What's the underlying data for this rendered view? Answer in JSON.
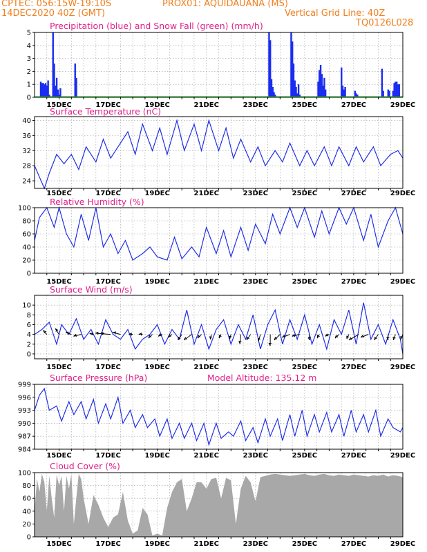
{
  "header": {
    "line1_left": "CPTEC:  056:15W-19:10S",
    "line1_right": "PROX01: AQUIDAUANA (MS)",
    "line2_left": "14DEC2020 40Z (GMT)",
    "line2_right": "Vertical Grid Line: 40Z",
    "line3_right": "TQ0126L028"
  },
  "x_axis_labels": [
    "15DEC",
    "17DEC",
    "19DEC",
    "21DEC",
    "23DEC",
    "25DEC",
    "27DEC",
    "29DEC"
  ],
  "colors": {
    "line": "#1f2ee6",
    "precip": "#1a2df0",
    "snow": "#18c218",
    "cloud": "#a8a8a8",
    "arrow": "#000000",
    "title": "#e0208a",
    "header": "#f08020"
  },
  "chart_data": [
    {
      "type": "bar",
      "title": "Precipitation (blue) and Snow Fall (green) (mm/h)",
      "ylim": [
        0,
        5
      ],
      "yticks": [
        0,
        1,
        2,
        3,
        4,
        5
      ],
      "xlim_days": [
        14,
        29
      ],
      "series": [
        {
          "name": "Precipitation",
          "x": [
            14.25,
            14.3,
            14.35,
            14.4,
            14.45,
            14.5,
            14.55,
            14.6,
            14.75,
            14.8,
            14.85,
            14.9,
            14.95,
            15.0,
            15.05,
            15.65,
            15.7,
            23.55,
            23.6,
            23.65,
            23.7,
            23.75,
            23.8,
            24.45,
            24.5,
            24.55,
            24.6,
            24.65,
            24.7,
            24.75,
            24.8,
            25.55,
            25.6,
            25.65,
            25.7,
            25.75,
            25.8,
            25.85,
            26.5,
            26.55,
            26.6,
            26.65,
            27.05,
            27.1,
            27.15,
            28.15,
            28.2,
            28.4,
            28.45,
            28.6,
            28.65,
            28.7,
            28.75,
            28.8,
            28.85
          ],
          "values": [
            1.2,
            1.1,
            1.1,
            1.0,
            1.1,
            0.9,
            1.3,
            0.2,
            5.0,
            2.6,
            0.9,
            1.5,
            0.6,
            0.2,
            0.7,
            2.6,
            1.5,
            5.0,
            4.4,
            1.4,
            0.8,
            0.4,
            0.2,
            5.0,
            4.3,
            2.6,
            1.3,
            0.8,
            0.3,
            1.0,
            0.2,
            1.2,
            2.1,
            2.5,
            1.8,
            0.9,
            1.5,
            0.6,
            2.3,
            0.9,
            0.6,
            0.8,
            0.5,
            0.3,
            0.2,
            2.2,
            0.5,
            0.6,
            0.5,
            0.5,
            1.1,
            1.2,
            1.2,
            1.0,
            1.0
          ]
        },
        {
          "name": "Snow Fall",
          "values": [
            0,
            0
          ]
        }
      ]
    },
    {
      "type": "line",
      "title": "Surface Temperature (nC)",
      "ylim": [
        22,
        41
      ],
      "yticks": [
        24,
        28,
        32,
        36,
        40
      ],
      "x": [
        14.0,
        14.2,
        14.4,
        14.6,
        14.9,
        15.2,
        15.5,
        15.8,
        16.1,
        16.5,
        16.8,
        17.1,
        17.4,
        17.8,
        18.1,
        18.4,
        18.8,
        19.1,
        19.4,
        19.8,
        20.1,
        20.5,
        20.8,
        21.1,
        21.5,
        21.8,
        22.1,
        22.4,
        22.8,
        23.1,
        23.4,
        23.8,
        24.1,
        24.4,
        24.8,
        25.1,
        25.4,
        25.8,
        26.1,
        26.4,
        26.8,
        27.1,
        27.4,
        27.8,
        28.1,
        28.5,
        28.8,
        29.0
      ],
      "values": [
        28,
        25,
        22,
        26,
        31,
        28.5,
        31,
        27,
        33,
        29,
        35,
        30,
        33,
        37,
        31,
        39,
        32,
        38,
        31,
        40,
        32,
        39,
        32,
        40,
        32,
        38,
        30,
        35,
        29,
        33,
        28,
        32,
        29,
        34,
        28,
        32,
        28,
        33,
        28,
        33,
        28,
        33,
        29,
        33,
        28,
        31,
        32,
        30
      ]
    },
    {
      "type": "line",
      "title": "Relative Humidity (%)",
      "ylim": [
        0,
        100
      ],
      "yticks": [
        0,
        20,
        40,
        60,
        80,
        100
      ],
      "x": [
        14.0,
        14.2,
        14.5,
        14.8,
        15.0,
        15.3,
        15.6,
        15.9,
        16.2,
        16.5,
        16.8,
        17.1,
        17.4,
        17.7,
        18.0,
        18.4,
        18.7,
        19.0,
        19.4,
        19.7,
        20.0,
        20.4,
        20.7,
        21.0,
        21.4,
        21.7,
        22.0,
        22.4,
        22.7,
        23.0,
        23.4,
        23.7,
        24.0,
        24.4,
        24.7,
        25.0,
        25.4,
        25.7,
        26.0,
        26.4,
        26.7,
        27.0,
        27.4,
        27.7,
        28.0,
        28.4,
        28.7,
        29.0
      ],
      "values": [
        50,
        85,
        100,
        70,
        100,
        60,
        40,
        90,
        50,
        100,
        40,
        60,
        30,
        50,
        20,
        30,
        40,
        25,
        20,
        55,
        22,
        40,
        25,
        70,
        30,
        65,
        25,
        70,
        35,
        75,
        45,
        90,
        60,
        100,
        70,
        100,
        55,
        95,
        60,
        100,
        75,
        100,
        50,
        90,
        40,
        80,
        100,
        60
      ]
    },
    {
      "type": "line",
      "title": "Surface Wind (m/s)",
      "ylim": [
        -1,
        12
      ],
      "yticks": [
        0,
        2,
        4,
        6,
        8,
        10
      ],
      "x": [
        14.0,
        14.3,
        14.6,
        14.9,
        15.1,
        15.4,
        15.7,
        16.0,
        16.3,
        16.6,
        16.9,
        17.2,
        17.5,
        17.8,
        18.1,
        18.4,
        18.7,
        19.0,
        19.3,
        19.6,
        19.9,
        20.2,
        20.5,
        20.8,
        21.1,
        21.4,
        21.7,
        22.0,
        22.3,
        22.6,
        22.9,
        23.2,
        23.5,
        23.8,
        24.1,
        24.4,
        24.7,
        25.0,
        25.3,
        25.6,
        25.9,
        26.2,
        26.5,
        26.8,
        27.1,
        27.4,
        27.7,
        28.0,
        28.3,
        28.6,
        28.9,
        29.0
      ],
      "values": [
        4,
        5,
        6.5,
        2,
        6,
        4,
        7.2,
        3,
        5,
        2,
        7,
        4,
        3,
        5,
        1,
        3,
        4,
        6,
        2,
        5,
        3,
        9,
        2,
        6,
        1,
        5,
        7,
        2,
        6,
        3,
        8,
        1,
        6,
        9,
        2,
        7,
        3,
        8,
        2,
        6,
        1,
        7,
        4,
        9,
        2,
        10.5,
        3,
        6,
        2,
        7,
        3,
        0
      ],
      "arrows": [
        {
          "day": 14.5,
          "u": -1,
          "v": 1
        },
        {
          "day": 15.0,
          "u": -1,
          "v": 1.5
        },
        {
          "day": 15.5,
          "u": -1.5,
          "v": 0.5
        },
        {
          "day": 15.9,
          "u": -2,
          "v": -0.5
        },
        {
          "day": 16.4,
          "u": -1,
          "v": 0.2
        },
        {
          "day": 16.8,
          "u": -0.5,
          "v": 0.6
        },
        {
          "day": 17.1,
          "u": -4,
          "v": 0.3
        },
        {
          "day": 17.5,
          "u": -2,
          "v": 0.5
        },
        {
          "day": 18.0,
          "u": -1,
          "v": 0
        },
        {
          "day": 18.4,
          "u": -1,
          "v": 0
        },
        {
          "day": 18.8,
          "u": -1,
          "v": -1
        },
        {
          "day": 19.2,
          "u": -1,
          "v": -0.5
        },
        {
          "day": 19.6,
          "u": -1,
          "v": -0.8
        },
        {
          "day": 20.0,
          "u": -1,
          "v": -1.5
        },
        {
          "day": 20.4,
          "u": -2,
          "v": -1.5
        },
        {
          "day": 20.8,
          "u": -1,
          "v": -1
        },
        {
          "day": 21.2,
          "u": -0.2,
          "v": -1.3
        },
        {
          "day": 21.6,
          "u": -0.5,
          "v": -1
        },
        {
          "day": 22.0,
          "u": -0.3,
          "v": -1.2
        },
        {
          "day": 22.4,
          "u": -0.2,
          "v": -2.5
        },
        {
          "day": 22.8,
          "u": -1,
          "v": -1.5
        },
        {
          "day": 23.2,
          "u": -0.5,
          "v": -1.8
        },
        {
          "day": 23.6,
          "u": 0,
          "v": -3
        },
        {
          "day": 24.0,
          "u": -1.5,
          "v": -1.5
        },
        {
          "day": 24.4,
          "u": -2,
          "v": -0.8
        },
        {
          "day": 24.8,
          "u": -2,
          "v": -0.5
        },
        {
          "day": 25.2,
          "u": 0,
          "v": -1.5
        },
        {
          "day": 25.6,
          "u": -0.5,
          "v": -1
        },
        {
          "day": 26.0,
          "u": -1,
          "v": -0.5
        },
        {
          "day": 26.4,
          "u": -1,
          "v": -1
        },
        {
          "day": 26.8,
          "u": -0.5,
          "v": -1.2
        },
        {
          "day": 27.2,
          "u": -2.5,
          "v": -1.5
        },
        {
          "day": 27.6,
          "u": -2,
          "v": -0.8
        },
        {
          "day": 28.0,
          "u": -1,
          "v": -1.5
        },
        {
          "day": 28.4,
          "u": 0,
          "v": -1.5
        },
        {
          "day": 28.7,
          "u": -0.5,
          "v": -1.5
        },
        {
          "day": 29.0,
          "u": -0.5,
          "v": -1.3
        }
      ]
    },
    {
      "type": "line",
      "title": "Surface Pressure (hPa)",
      "annotation": "Model Altitude: 135.12  m",
      "ylim": [
        984,
        999
      ],
      "yticks": [
        984,
        987,
        990,
        993,
        996,
        999
      ],
      "x": [
        14.0,
        14.2,
        14.4,
        14.6,
        14.9,
        15.1,
        15.4,
        15.6,
        15.9,
        16.1,
        16.4,
        16.6,
        16.9,
        17.1,
        17.4,
        17.6,
        17.9,
        18.1,
        18.4,
        18.6,
        18.9,
        19.1,
        19.4,
        19.6,
        19.9,
        20.1,
        20.4,
        20.6,
        20.9,
        21.1,
        21.4,
        21.6,
        21.9,
        22.1,
        22.4,
        22.6,
        22.9,
        23.1,
        23.4,
        23.6,
        23.9,
        24.1,
        24.4,
        24.6,
        24.9,
        25.1,
        25.4,
        25.6,
        25.9,
        26.1,
        26.4,
        26.6,
        26.9,
        27.1,
        27.4,
        27.6,
        27.9,
        28.1,
        28.4,
        28.6,
        28.9,
        29.0
      ],
      "values": [
        993,
        996.5,
        998,
        993,
        994,
        990.5,
        995,
        992,
        995,
        991,
        995.5,
        990,
        994.5,
        991,
        996,
        990,
        993,
        989,
        992,
        989,
        991,
        987,
        991,
        986.5,
        990,
        986.5,
        990,
        986,
        990,
        985,
        990,
        986.5,
        988,
        987,
        990.5,
        986,
        989,
        985.5,
        991,
        987,
        991,
        986,
        992,
        987,
        993,
        987,
        992,
        988,
        992.5,
        988,
        992,
        987,
        993,
        988,
        992,
        988,
        993,
        987,
        991,
        989,
        988,
        989
      ]
    },
    {
      "type": "area",
      "title": "Cloud Cover (%)",
      "ylim": [
        0,
        100
      ],
      "yticks": [
        0,
        20,
        40,
        60,
        80,
        100
      ],
      "x": [
        14.0,
        14.1,
        14.2,
        14.3,
        14.4,
        14.5,
        14.6,
        14.7,
        14.8,
        14.9,
        15.0,
        15.1,
        15.2,
        15.3,
        15.4,
        15.5,
        15.6,
        15.7,
        15.8,
        15.9,
        16.0,
        16.2,
        16.4,
        16.6,
        16.8,
        17.0,
        17.2,
        17.4,
        17.6,
        17.8,
        18.0,
        18.2,
        18.4,
        18.6,
        18.8,
        19.0,
        19.2,
        19.4,
        19.6,
        19.8,
        20.0,
        20.2,
        20.4,
        20.6,
        20.8,
        21.0,
        21.2,
        21.4,
        21.6,
        21.8,
        22.0,
        22.2,
        22.4,
        22.6,
        22.8,
        23.0,
        23.2,
        23.4,
        23.6,
        23.8,
        24.0,
        24.2,
        24.4,
        24.6,
        24.8,
        25.0,
        25.2,
        25.4,
        25.6,
        25.8,
        26.0,
        26.2,
        26.4,
        26.6,
        26.8,
        27.0,
        27.2,
        27.4,
        27.6,
        27.8,
        28.0,
        28.2,
        28.4,
        28.6,
        28.8,
        29.0
      ],
      "values": [
        40,
        90,
        70,
        98,
        85,
        40,
        95,
        60,
        30,
        97,
        80,
        95,
        40,
        95,
        75,
        98,
        20,
        60,
        98,
        90,
        60,
        20,
        65,
        50,
        30,
        15,
        30,
        35,
        70,
        25,
        5,
        10,
        45,
        35,
        2,
        5,
        2,
        45,
        70,
        85,
        90,
        40,
        60,
        85,
        85,
        75,
        90,
        92,
        60,
        92,
        88,
        20,
        75,
        95,
        85,
        55,
        93,
        95,
        97,
        98,
        97,
        96,
        95,
        96,
        97,
        98,
        96,
        95,
        97,
        98,
        96,
        95,
        97,
        96,
        95,
        97,
        96,
        95,
        94,
        96,
        95,
        97,
        94,
        96,
        95,
        93
      ]
    }
  ]
}
